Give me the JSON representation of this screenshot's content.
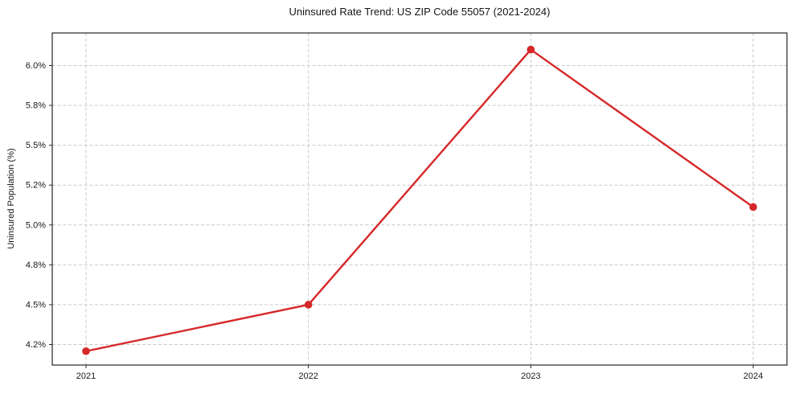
{
  "chart_data": {
    "type": "line",
    "title": "Uninsured Rate Trend: US ZIP Code 55057 (2021-2024)",
    "xlabel": "",
    "ylabel": "Uninsured Population (%)",
    "categories": [
      "2021",
      "2022",
      "2023",
      "2024"
    ],
    "values": [
      4.15,
      4.5,
      6.08,
      5.09
    ],
    "ytick_labels": [
      "4.2%",
      "4.5%",
      "4.8%",
      "5.0%",
      "5.2%",
      "5.5%",
      "5.8%",
      "6.0%"
    ],
    "ylim_labels": [
      "4.08%",
      "6.15%"
    ],
    "grid": true,
    "grid_style": "dashed",
    "legend": "none",
    "line_color": "#d62728",
    "marker": "circle",
    "background": "#ffffff"
  }
}
